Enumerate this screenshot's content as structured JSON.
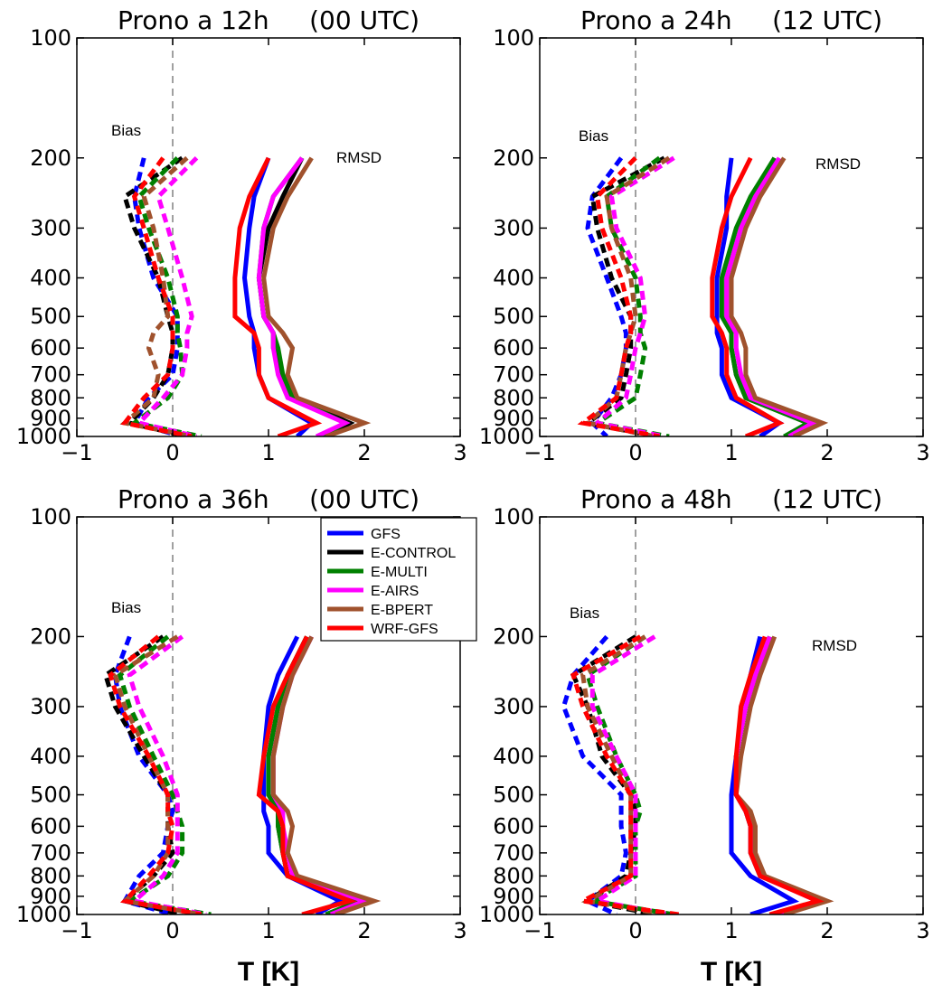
{
  "figure": {
    "xlabel": "T [K]"
  },
  "legend": [
    {
      "name": "GFS",
      "color": "#0000ff"
    },
    {
      "name": "E-CONTROL",
      "color": "#000000"
    },
    {
      "name": "E-MULTI",
      "color": "#008000"
    },
    {
      "name": "E-AIRS",
      "color": "#ff00ff"
    },
    {
      "name": "E-BPERT",
      "color": "#a0522d"
    },
    {
      "name": "WRF-GFS",
      "color": "#ff0000"
    }
  ],
  "chart_data": [
    {
      "type": "line",
      "title": "Prono a 12h     (00 UTC)",
      "xlabel": "T [K]",
      "ylabel": "",
      "xlim": [
        -1,
        3
      ],
      "ylim": [
        1000,
        100
      ],
      "yscale": "log",
      "xticks": [
        "−1",
        "0",
        "1",
        "2",
        "3"
      ],
      "yticks": [
        "100",
        "200",
        "300",
        "400",
        "500",
        "600",
        "700",
        "800",
        "900",
        "1000"
      ],
      "annotations": [
        "Bias",
        "RMSD"
      ],
      "levels": [
        200,
        250,
        300,
        400,
        500,
        550,
        600,
        700,
        800,
        925,
        1000
      ],
      "series": [
        {
          "name": "GFS",
          "metric": "Bias",
          "values": [
            -0.3,
            -0.4,
            -0.35,
            -0.2,
            0.05,
            0.05,
            0.05,
            0.0,
            -0.25,
            -0.4,
            0.1
          ]
        },
        {
          "name": "E-CONTROL",
          "metric": "Bias",
          "values": [
            0.1,
            -0.5,
            -0.4,
            -0.15,
            -0.05,
            0.0,
            0.0,
            -0.05,
            -0.2,
            -0.45,
            0.15
          ]
        },
        {
          "name": "E-MULTI",
          "metric": "Bias",
          "values": [
            0.05,
            -0.35,
            -0.25,
            -0.05,
            0.05,
            0.05,
            0.08,
            0.1,
            -0.05,
            -0.4,
            0.3
          ]
        },
        {
          "name": "E-AIRS",
          "metric": "Bias",
          "values": [
            0.25,
            -0.15,
            -0.05,
            0.1,
            0.2,
            0.15,
            0.15,
            0.1,
            -0.1,
            -0.35,
            0.25
          ]
        },
        {
          "name": "E-BPERT",
          "metric": "Bias",
          "values": [
            0.15,
            -0.3,
            -0.2,
            -0.1,
            -0.05,
            -0.2,
            -0.25,
            -0.15,
            -0.2,
            -0.5,
            0.2
          ]
        },
        {
          "name": "WRF-GFS",
          "metric": "Bias",
          "values": [
            -0.1,
            -0.4,
            -0.3,
            -0.15,
            0.0,
            0.0,
            0.0,
            -0.05,
            -0.3,
            -0.5,
            0.2
          ]
        },
        {
          "name": "GFS",
          "metric": "RMSD",
          "values": [
            1.0,
            0.85,
            0.8,
            0.75,
            0.8,
            0.85,
            0.85,
            0.9,
            1.0,
            1.45,
            1.3
          ]
        },
        {
          "name": "E-CONTROL",
          "metric": "RMSD",
          "values": [
            1.35,
            1.15,
            1.0,
            0.9,
            0.95,
            1.05,
            1.05,
            1.15,
            1.25,
            1.85,
            1.6
          ]
        },
        {
          "name": "E-MULTI",
          "metric": "RMSD",
          "values": [
            1.35,
            1.05,
            0.95,
            0.9,
            0.95,
            1.05,
            1.1,
            1.15,
            1.25,
            1.8,
            1.55
          ]
        },
        {
          "name": "E-AIRS",
          "metric": "RMSD",
          "values": [
            1.35,
            1.05,
            0.95,
            0.9,
            0.95,
            1.05,
            1.05,
            1.1,
            1.2,
            1.8,
            1.5
          ]
        },
        {
          "name": "E-BPERT",
          "metric": "RMSD",
          "values": [
            1.45,
            1.2,
            1.05,
            0.95,
            1.0,
            1.15,
            1.25,
            1.2,
            1.3,
            2.0,
            1.6
          ]
        },
        {
          "name": "WRF-GFS",
          "metric": "RMSD",
          "values": [
            1.0,
            0.8,
            0.7,
            0.65,
            0.65,
            0.85,
            0.9,
            0.9,
            1.0,
            1.5,
            1.1
          ]
        }
      ]
    },
    {
      "type": "line",
      "title": "Prono a 24h     (12 UTC)",
      "xlabel": "T [K]",
      "ylabel": "",
      "xlim": [
        -1,
        3
      ],
      "ylim": [
        1000,
        100
      ],
      "yscale": "log",
      "xticks": [
        "−1",
        "0",
        "1",
        "2",
        "3"
      ],
      "yticks": [
        "100",
        "200",
        "300",
        "400",
        "500",
        "600",
        "700",
        "800",
        "900",
        "1000"
      ],
      "annotations": [
        "Bias",
        "RMSD"
      ],
      "levels": [
        200,
        250,
        300,
        400,
        500,
        550,
        600,
        700,
        800,
        925,
        1000
      ],
      "series": [
        {
          "name": "GFS",
          "metric": "Bias",
          "values": [
            -0.15,
            -0.45,
            -0.5,
            -0.3,
            -0.15,
            -0.1,
            -0.1,
            -0.15,
            -0.25,
            -0.45,
            -0.3
          ]
        },
        {
          "name": "E-CONTROL",
          "metric": "Bias",
          "values": [
            0.3,
            -0.45,
            -0.4,
            -0.25,
            -0.05,
            -0.05,
            -0.05,
            -0.1,
            -0.15,
            -0.5,
            0.2
          ]
        },
        {
          "name": "E-MULTI",
          "metric": "Bias",
          "values": [
            0.25,
            -0.3,
            -0.25,
            0.0,
            0.05,
            0.05,
            0.1,
            0.05,
            0.0,
            -0.4,
            0.35
          ]
        },
        {
          "name": "E-AIRS",
          "metric": "Bias",
          "values": [
            0.4,
            -0.25,
            -0.2,
            0.05,
            0.1,
            0.05,
            0.0,
            -0.05,
            -0.1,
            -0.4,
            0.3
          ]
        },
        {
          "name": "E-BPERT",
          "metric": "Bias",
          "values": [
            0.35,
            -0.3,
            -0.25,
            -0.05,
            0.0,
            -0.05,
            -0.1,
            -0.15,
            -0.2,
            -0.5,
            0.2
          ]
        },
        {
          "name": "WRF-GFS",
          "metric": "Bias",
          "values": [
            0.0,
            -0.4,
            -0.35,
            -0.15,
            -0.05,
            -0.05,
            -0.1,
            -0.15,
            -0.2,
            -0.55,
            0.25
          ]
        },
        {
          "name": "GFS",
          "metric": "RMSD",
          "values": [
            1.0,
            0.95,
            0.95,
            0.85,
            0.85,
            0.85,
            0.9,
            0.9,
            1.0,
            1.5,
            1.3
          ]
        },
        {
          "name": "E-CONTROL",
          "metric": "RMSD",
          "values": [
            1.45,
            1.25,
            1.1,
            0.95,
            0.95,
            1.0,
            1.0,
            1.05,
            1.15,
            1.8,
            1.6
          ]
        },
        {
          "name": "E-MULTI",
          "metric": "RMSD",
          "values": [
            1.45,
            1.2,
            1.05,
            0.9,
            0.9,
            1.0,
            1.0,
            1.05,
            1.15,
            1.8,
            1.55
          ]
        },
        {
          "name": "E-AIRS",
          "metric": "RMSD",
          "values": [
            1.5,
            1.25,
            1.1,
            0.95,
            0.95,
            1.05,
            1.05,
            1.1,
            1.2,
            1.85,
            1.6
          ]
        },
        {
          "name": "E-BPERT",
          "metric": "RMSD",
          "values": [
            1.55,
            1.3,
            1.15,
            1.0,
            1.0,
            1.1,
            1.15,
            1.15,
            1.25,
            1.95,
            1.65
          ]
        },
        {
          "name": "WRF-GFS",
          "metric": "RMSD",
          "values": [
            1.2,
            1.0,
            0.9,
            0.8,
            0.8,
            0.9,
            0.95,
            0.95,
            1.05,
            1.5,
            1.15
          ]
        }
      ]
    },
    {
      "type": "line",
      "title": "Prono a 36h     (00 UTC)",
      "xlabel": "T [K]",
      "ylabel": "",
      "xlim": [
        -1,
        3
      ],
      "ylim": [
        1000,
        100
      ],
      "yscale": "log",
      "xticks": [
        "−1",
        "0",
        "1",
        "2",
        "3"
      ],
      "yticks": [
        "100",
        "200",
        "300",
        "400",
        "500",
        "600",
        "700",
        "800",
        "900",
        "1000"
      ],
      "annotations": [
        "Bias"
      ],
      "levels": [
        200,
        250,
        300,
        400,
        500,
        550,
        600,
        700,
        800,
        925,
        1000
      ],
      "series": [
        {
          "name": "GFS",
          "metric": "Bias",
          "values": [
            -0.45,
            -0.6,
            -0.55,
            -0.35,
            -0.05,
            0.0,
            -0.05,
            -0.1,
            -0.35,
            -0.5,
            0.0
          ]
        },
        {
          "name": "E-CONTROL",
          "metric": "Bias",
          "values": [
            -0.1,
            -0.7,
            -0.6,
            -0.3,
            -0.05,
            -0.05,
            -0.05,
            0.0,
            -0.2,
            -0.5,
            0.1
          ]
        },
        {
          "name": "E-MULTI",
          "metric": "Bias",
          "values": [
            -0.05,
            -0.55,
            -0.45,
            -0.2,
            0.0,
            0.05,
            0.1,
            0.1,
            -0.05,
            -0.45,
            0.4
          ]
        },
        {
          "name": "E-AIRS",
          "metric": "Bias",
          "values": [
            0.1,
            -0.45,
            -0.35,
            -0.1,
            0.05,
            0.05,
            0.05,
            0.05,
            -0.1,
            -0.4,
            0.35
          ]
        },
        {
          "name": "E-BPERT",
          "metric": "Bias",
          "values": [
            0.05,
            -0.6,
            -0.5,
            -0.25,
            -0.05,
            -0.05,
            -0.05,
            -0.05,
            -0.2,
            -0.5,
            0.3
          ]
        },
        {
          "name": "WRF-GFS",
          "metric": "Bias",
          "values": [
            -0.15,
            -0.65,
            -0.55,
            -0.25,
            -0.05,
            -0.05,
            0.0,
            -0.05,
            -0.25,
            -0.5,
            0.3
          ]
        },
        {
          "name": "GFS",
          "metric": "RMSD",
          "values": [
            1.3,
            1.1,
            1.0,
            0.95,
            0.95,
            0.95,
            1.0,
            1.0,
            1.2,
            1.75,
            1.5
          ]
        },
        {
          "name": "E-CONTROL",
          "metric": "RMSD",
          "values": [
            1.4,
            1.2,
            1.1,
            1.0,
            1.0,
            1.1,
            1.1,
            1.15,
            1.2,
            1.95,
            1.6
          ]
        },
        {
          "name": "E-MULTI",
          "metric": "RMSD",
          "values": [
            1.4,
            1.2,
            1.1,
            1.0,
            1.0,
            1.1,
            1.1,
            1.15,
            1.2,
            1.95,
            1.6
          ]
        },
        {
          "name": "E-AIRS",
          "metric": "RMSD",
          "values": [
            1.45,
            1.25,
            1.15,
            1.05,
            1.05,
            1.15,
            1.15,
            1.2,
            1.25,
            2.0,
            1.65
          ]
        },
        {
          "name": "E-BPERT",
          "metric": "RMSD",
          "values": [
            1.45,
            1.25,
            1.15,
            1.05,
            1.05,
            1.2,
            1.25,
            1.2,
            1.3,
            2.1,
            1.7
          ]
        },
        {
          "name": "WRF-GFS",
          "metric": "RMSD",
          "values": [
            1.4,
            1.2,
            1.05,
            0.95,
            0.9,
            1.1,
            1.15,
            1.15,
            1.2,
            1.85,
            1.35
          ]
        }
      ]
    },
    {
      "type": "line",
      "title": "Prono a 48h     (12 UTC)",
      "xlabel": "T [K]",
      "ylabel": "",
      "xlim": [
        -1,
        3
      ],
      "ylim": [
        1000,
        100
      ],
      "yscale": "log",
      "xticks": [
        "−1",
        "0",
        "1",
        "2",
        "3"
      ],
      "yticks": [
        "100",
        "200",
        "300",
        "400",
        "500",
        "600",
        "700",
        "800",
        "900",
        "1000"
      ],
      "annotations": [
        "Bias",
        "RMSD"
      ],
      "levels": [
        200,
        250,
        300,
        400,
        500,
        550,
        600,
        700,
        800,
        925,
        1000
      ],
      "series": [
        {
          "name": "GFS",
          "metric": "Bias",
          "values": [
            -0.3,
            -0.65,
            -0.75,
            -0.55,
            -0.15,
            -0.15,
            -0.15,
            -0.1,
            -0.15,
            -0.5,
            -0.2
          ]
        },
        {
          "name": "E-CONTROL",
          "metric": "Bias",
          "values": [
            0.0,
            -0.65,
            -0.5,
            -0.35,
            -0.05,
            0.0,
            0.0,
            -0.05,
            -0.1,
            -0.5,
            0.2
          ]
        },
        {
          "name": "E-MULTI",
          "metric": "Bias",
          "values": [
            0.1,
            -0.5,
            -0.4,
            -0.2,
            0.0,
            0.05,
            0.0,
            0.0,
            0.0,
            -0.45,
            0.4
          ]
        },
        {
          "name": "E-AIRS",
          "metric": "Bias",
          "values": [
            0.2,
            -0.45,
            -0.45,
            -0.2,
            0.0,
            0.0,
            0.0,
            0.0,
            0.0,
            -0.4,
            0.35
          ]
        },
        {
          "name": "E-BPERT",
          "metric": "Bias",
          "values": [
            0.1,
            -0.55,
            -0.5,
            -0.25,
            -0.05,
            -0.05,
            -0.05,
            -0.05,
            -0.05,
            -0.5,
            0.3
          ]
        },
        {
          "name": "WRF-GFS",
          "metric": "Bias",
          "values": [
            0.05,
            -0.65,
            -0.55,
            -0.3,
            -0.05,
            -0.05,
            -0.05,
            -0.05,
            -0.05,
            -0.55,
            0.45
          ]
        },
        {
          "name": "GFS",
          "metric": "RMSD",
          "values": [
            1.3,
            1.2,
            1.15,
            1.05,
            1.0,
            1.0,
            1.0,
            1.0,
            1.2,
            1.65,
            1.2
          ]
        },
        {
          "name": "E-CONTROL",
          "metric": "RMSD",
          "values": [
            1.4,
            1.25,
            1.15,
            1.05,
            1.05,
            1.15,
            1.2,
            1.2,
            1.3,
            1.95,
            1.5
          ]
        },
        {
          "name": "E-MULTI",
          "metric": "RMSD",
          "values": [
            1.4,
            1.25,
            1.15,
            1.05,
            1.05,
            1.15,
            1.2,
            1.2,
            1.3,
            1.95,
            1.5
          ]
        },
        {
          "name": "E-AIRS",
          "metric": "RMSD",
          "values": [
            1.4,
            1.25,
            1.15,
            1.05,
            1.05,
            1.15,
            1.2,
            1.2,
            1.3,
            1.9,
            1.5
          ]
        },
        {
          "name": "E-BPERT",
          "metric": "RMSD",
          "values": [
            1.45,
            1.3,
            1.2,
            1.1,
            1.05,
            1.2,
            1.25,
            1.25,
            1.35,
            2.0,
            1.55
          ]
        },
        {
          "name": "WRF-GFS",
          "metric": "RMSD",
          "values": [
            1.35,
            1.2,
            1.1,
            1.05,
            1.05,
            1.15,
            1.2,
            1.2,
            1.3,
            1.9,
            1.4
          ]
        }
      ]
    }
  ]
}
